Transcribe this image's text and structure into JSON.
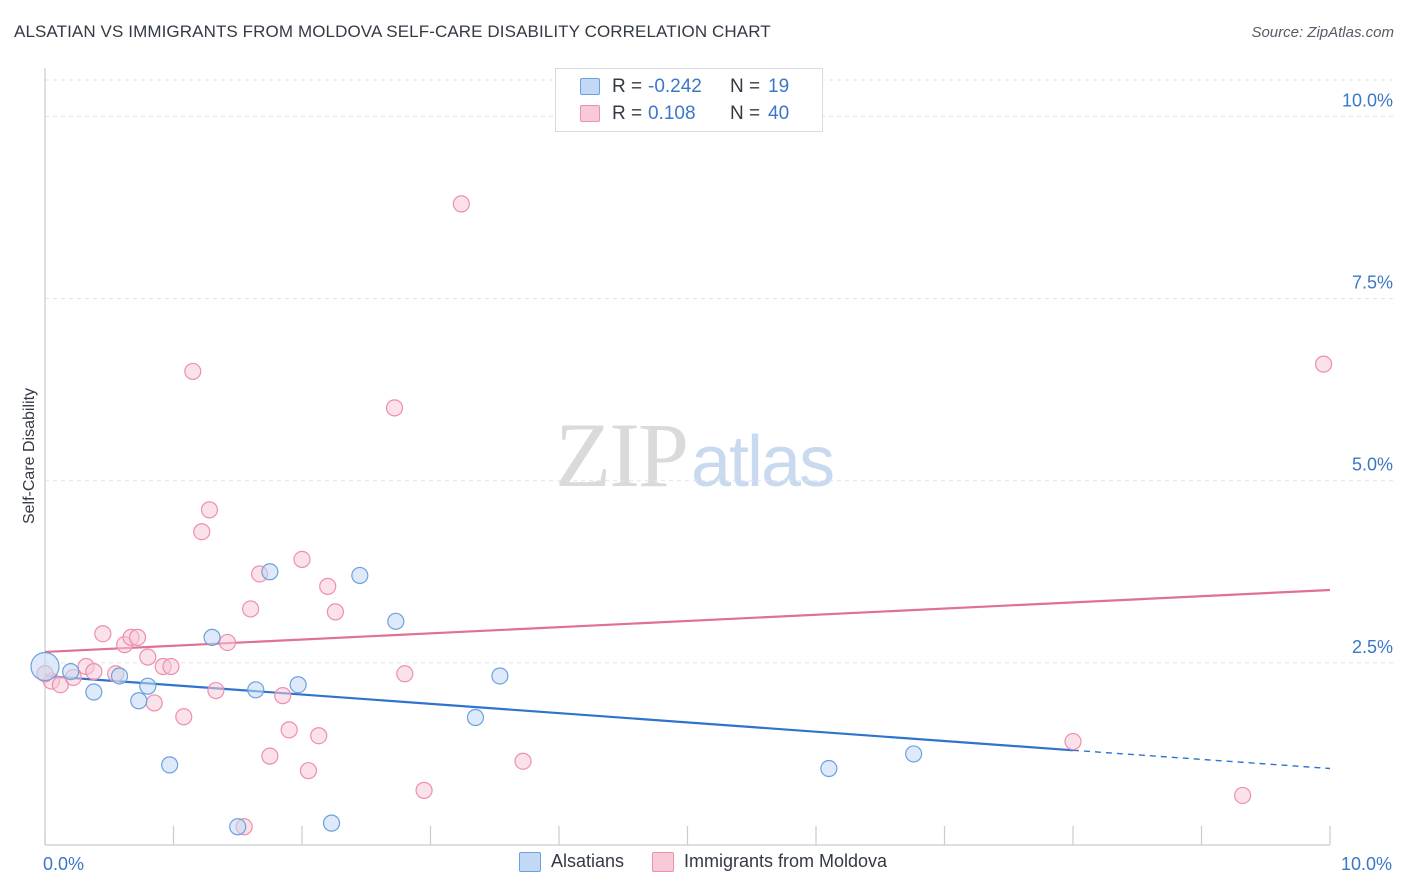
{
  "header": {
    "title": "ALSATIAN VS IMMIGRANTS FROM MOLDOVA SELF-CARE DISABILITY CORRELATION CHART",
    "source": "Source: ZipAtlas.com"
  },
  "watermark": {
    "zip": "ZIP",
    "atlas": "atlas"
  },
  "stats": [
    {
      "r_label": "R =",
      "r_value": "-0.242",
      "n_label": "N =",
      "n_value": "19",
      "color": "#6aa1e0"
    },
    {
      "r_label": "R =",
      "r_value": "0.108",
      "n_label": "N =",
      "n_value": "40",
      "color": "#ee8fac"
    }
  ],
  "chart_data": {
    "type": "scatter",
    "xlabel": "",
    "ylabel": "Self-Care Disability",
    "xlim": [
      0,
      10
    ],
    "ylim": [
      0,
      10.5
    ],
    "x_tick_labels": [
      {
        "value": 0,
        "label": "0.0%"
      },
      {
        "value": 10,
        "label": "10.0%"
      }
    ],
    "y_tick_labels": [
      {
        "value": 2.5,
        "label": "2.5%"
      },
      {
        "value": 5.0,
        "label": "5.0%"
      },
      {
        "value": 7.5,
        "label": "7.5%"
      },
      {
        "value": 10.0,
        "label": "10.0%"
      }
    ],
    "legend_position": "bottom-center",
    "series": [
      {
        "name": "Alsatians",
        "color": "#6aa1e0",
        "fill": "#c2d8f4",
        "points": [
          [
            0.0,
            2.45
          ],
          [
            0.2,
            2.38
          ],
          [
            0.38,
            2.1
          ],
          [
            0.58,
            2.32
          ],
          [
            0.73,
            1.98
          ],
          [
            0.8,
            2.18
          ],
          [
            0.97,
            1.1
          ],
          [
            1.3,
            2.85
          ],
          [
            1.5,
            0.25
          ],
          [
            1.64,
            2.13
          ],
          [
            1.75,
            3.75
          ],
          [
            1.97,
            2.2
          ],
          [
            2.23,
            0.3
          ],
          [
            2.45,
            3.7
          ],
          [
            2.73,
            3.07
          ],
          [
            3.35,
            1.75
          ],
          [
            3.54,
            2.32
          ],
          [
            6.1,
            1.05
          ],
          [
            6.76,
            1.25
          ]
        ],
        "trend": {
          "x0": 0.0,
          "y0": 2.32,
          "x1": 8.0,
          "y1": 1.3,
          "dash_x1": 10.0,
          "dash_y1": 1.05
        }
      },
      {
        "name": "Immigrants from Moldova",
        "color": "#ee8fac",
        "fill": "#f8c9d7",
        "points": [
          [
            0.05,
            2.25
          ],
          [
            0.12,
            2.2
          ],
          [
            0.22,
            2.3
          ],
          [
            0.32,
            2.45
          ],
          [
            0.38,
            2.38
          ],
          [
            0.45,
            2.9
          ],
          [
            0.55,
            2.35
          ],
          [
            0.62,
            2.75
          ],
          [
            0.67,
            2.85
          ],
          [
            0.72,
            2.85
          ],
          [
            0.8,
            2.58
          ],
          [
            0.85,
            1.95
          ],
          [
            0.92,
            2.45
          ],
          [
            0.98,
            2.45
          ],
          [
            1.08,
            1.76
          ],
          [
            1.15,
            6.5
          ],
          [
            1.22,
            4.3
          ],
          [
            1.28,
            4.6
          ],
          [
            1.33,
            2.12
          ],
          [
            1.42,
            2.78
          ],
          [
            1.55,
            0.25
          ],
          [
            1.6,
            3.24
          ],
          [
            1.67,
            3.72
          ],
          [
            1.75,
            1.22
          ],
          [
            1.85,
            2.05
          ],
          [
            1.9,
            1.58
          ],
          [
            2.0,
            3.92
          ],
          [
            2.05,
            1.02
          ],
          [
            2.13,
            1.5
          ],
          [
            2.2,
            3.55
          ],
          [
            2.26,
            3.2
          ],
          [
            2.72,
            6.0
          ],
          [
            2.8,
            2.35
          ],
          [
            2.95,
            0.75
          ],
          [
            3.24,
            8.8
          ],
          [
            3.72,
            1.15
          ],
          [
            8.0,
            1.42
          ],
          [
            9.32,
            0.68
          ],
          [
            9.95,
            6.6
          ],
          [
            0.0,
            2.35
          ]
        ],
        "trend": {
          "x0": 0.0,
          "y0": 2.65,
          "x1": 10.0,
          "y1": 3.5
        }
      }
    ]
  }
}
